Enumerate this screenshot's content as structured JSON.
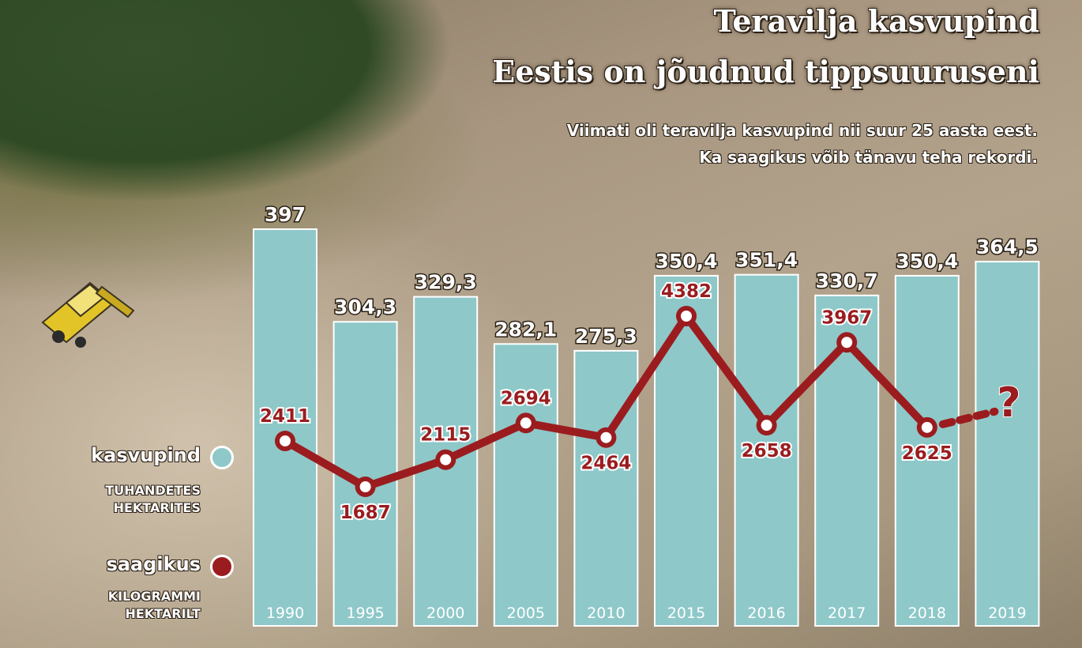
{
  "header": {
    "title_line1": "Teravilja kasvupind",
    "title_line2": "Eestis on jõudnud tippsuuruseni",
    "subtitle_line1": "Viimati oli teravilja kasvupind nii suur 25 aasta eest.",
    "subtitle_line2": "Ka saagikus võib tänavu teha rekordi."
  },
  "legend": {
    "area_label": "kasvupind",
    "area_unit": "TUHANDETES\nHEKTARITES",
    "yield_label": "saagikus",
    "yield_unit": "KILOGRAMMI\nHEKTARILT"
  },
  "colors": {
    "bar": "#8ec8c9",
    "line": "#9b1c1f",
    "yield_text": "#9b1c1f",
    "white": "#ffffff"
  },
  "chart_data": {
    "type": "bar",
    "categories": [
      "1990",
      "1995",
      "2000",
      "2005",
      "2010",
      "2015",
      "2016",
      "2017",
      "2018",
      "2019"
    ],
    "series": [
      {
        "name": "kasvupind",
        "type": "bar",
        "values": [
          397,
          304.3,
          329.3,
          282.1,
          275.3,
          350.4,
          351.4,
          330.7,
          350.4,
          364.5
        ],
        "labels": [
          "397",
          "304,3",
          "329,3",
          "282,1",
          "275,3",
          "350,4",
          "351,4",
          "330,7",
          "350,4",
          "364,5"
        ]
      },
      {
        "name": "saagikus",
        "type": "line",
        "values": [
          2411,
          1687,
          2115,
          2694,
          2464,
          4382,
          2658,
          3967,
          2625,
          null
        ],
        "labels": [
          "2411",
          "1687",
          "2115",
          "2694",
          "2464",
          "4382",
          "2658",
          "3967",
          "2625",
          ""
        ]
      }
    ],
    "unknown_marker": "?",
    "label_positions": [
      "above",
      "below",
      "above",
      "above",
      "below",
      "above",
      "below",
      "above",
      "below",
      ""
    ]
  }
}
